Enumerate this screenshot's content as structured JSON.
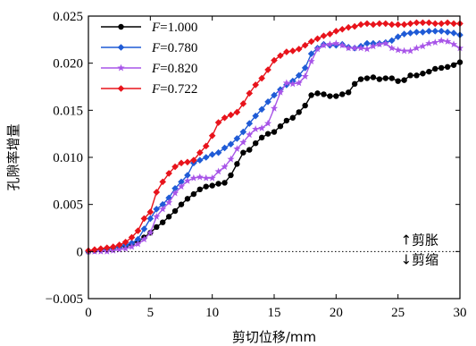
{
  "chart_data": {
    "type": "line",
    "xlabel": "剪切位移/mm",
    "ylabel": "孔隙率增量",
    "xlim": [
      0,
      30
    ],
    "ylim": [
      -0.005,
      0.025
    ],
    "xticks": [
      0,
      5,
      10,
      15,
      20,
      25,
      30
    ],
    "xtick_labels": [
      "0",
      "5",
      "10",
      "15",
      "20",
      "25",
      "30"
    ],
    "yticks": [
      -0.005,
      0,
      0.005,
      0.01,
      0.015,
      0.02,
      0.025
    ],
    "ytick_labels": [
      "−0.005",
      "0",
      "0.005",
      "0.010",
      "0.015",
      "0.020",
      "0.025"
    ],
    "grid": false,
    "legend_position": "top-left",
    "reference_line": {
      "y": 0,
      "style": "dotted"
    },
    "annotations": [
      {
        "text": "↑剪胀",
        "x": 25.2,
        "y": 0.00075
      },
      {
        "text": "↓剪缩",
        "x": 25.2,
        "y": -0.00135
      }
    ],
    "series": [
      {
        "legend_italic": "F",
        "legend_rest": "=1.000",
        "color": "#000000",
        "marker": "circle",
        "x": [
          0,
          0.5,
          1,
          1.5,
          2,
          2.5,
          3,
          3.5,
          4,
          4.5,
          5,
          5.5,
          6,
          6.5,
          7,
          7.5,
          8,
          8.5,
          9,
          9.5,
          10,
          10.5,
          11,
          11.5,
          12,
          12.5,
          13,
          13.5,
          14,
          14.5,
          15,
          15.5,
          16,
          16.5,
          17,
          17.5,
          18,
          18.5,
          19,
          19.5,
          20,
          20.5,
          21,
          21.5,
          22,
          22.5,
          23,
          23.5,
          24,
          24.5,
          25,
          25.5,
          26,
          26.5,
          27,
          27.5,
          28,
          28.5,
          29,
          29.5,
          30
        ],
        "y": [
          0,
          0.0001,
          0.0002,
          0.0003,
          0.0004,
          0.0005,
          0.0006,
          0.0008,
          0.0011,
          0.0015,
          0.002,
          0.0026,
          0.0031,
          0.0037,
          0.0043,
          0.005,
          0.0056,
          0.0061,
          0.0066,
          0.0069,
          0.007,
          0.0072,
          0.0073,
          0.0081,
          0.0093,
          0.0105,
          0.0108,
          0.0115,
          0.0121,
          0.0125,
          0.0127,
          0.0133,
          0.0139,
          0.0142,
          0.0148,
          0.0155,
          0.0166,
          0.0168,
          0.0167,
          0.0165,
          0.0165,
          0.0167,
          0.0169,
          0.0178,
          0.0183,
          0.0184,
          0.0185,
          0.0183,
          0.0184,
          0.0184,
          0.0181,
          0.0182,
          0.0187,
          0.0187,
          0.0189,
          0.0191,
          0.0194,
          0.0195,
          0.0196,
          0.0198,
          0.0201
        ]
      },
      {
        "legend_italic": "F",
        "legend_rest": "=0.780",
        "color": "#1f5bd6",
        "marker": "diamond",
        "x": [
          0,
          0.5,
          1,
          1.5,
          2,
          2.5,
          3,
          3.5,
          4,
          4.5,
          5,
          5.5,
          6,
          6.5,
          7,
          7.5,
          8,
          8.5,
          9,
          9.5,
          10,
          10.5,
          11,
          11.5,
          12,
          12.5,
          13,
          13.5,
          14,
          14.5,
          15,
          15.5,
          16,
          16.5,
          17,
          17.5,
          18,
          18.5,
          19,
          19.5,
          20,
          20.5,
          21,
          21.5,
          22,
          22.5,
          23,
          23.5,
          24,
          24.5,
          25,
          25.5,
          26,
          26.5,
          27,
          27.5,
          28,
          28.5,
          29,
          29.5,
          30
        ],
        "y": [
          0,
          0.0001,
          0.0002,
          0.0003,
          0.0004,
          0.0005,
          0.0007,
          0.0009,
          0.0013,
          0.0024,
          0.0035,
          0.0045,
          0.005,
          0.0057,
          0.0067,
          0.0074,
          0.0081,
          0.0094,
          0.0097,
          0.01,
          0.0103,
          0.0105,
          0.011,
          0.0114,
          0.012,
          0.0127,
          0.0136,
          0.0144,
          0.0151,
          0.0159,
          0.0166,
          0.0172,
          0.0177,
          0.0181,
          0.0187,
          0.0195,
          0.021,
          0.0216,
          0.022,
          0.0219,
          0.0219,
          0.022,
          0.0217,
          0.0216,
          0.0218,
          0.0221,
          0.0221,
          0.0221,
          0.0222,
          0.0224,
          0.0228,
          0.0231,
          0.0232,
          0.0233,
          0.0233,
          0.0234,
          0.0234,
          0.0234,
          0.0233,
          0.0232,
          0.023
        ]
      },
      {
        "legend_italic": "F",
        "legend_rest": "=0.820",
        "color": "#a855e8",
        "marker": "star",
        "x": [
          0,
          0.5,
          1,
          1.5,
          2,
          2.5,
          3,
          3.5,
          4,
          4.5,
          5,
          5.5,
          6,
          6.5,
          7,
          7.5,
          8,
          8.5,
          9,
          9.5,
          10,
          10.5,
          11,
          11.5,
          12,
          12.5,
          13,
          13.5,
          14,
          14.5,
          15,
          15.5,
          16,
          16.5,
          17,
          17.5,
          18,
          18.5,
          19,
          19.5,
          20,
          20.5,
          21,
          21.5,
          22,
          22.5,
          23,
          23.5,
          24,
          24.5,
          25,
          25.5,
          26,
          26.5,
          27,
          27.5,
          28,
          28.5,
          29,
          29.5,
          30
        ],
        "y": [
          0,
          0,
          0,
          0,
          0.0001,
          0.0002,
          0.0003,
          0.0005,
          0.0008,
          0.0013,
          0.002,
          0.0037,
          0.0045,
          0.0052,
          0.0062,
          0.0069,
          0.0075,
          0.0078,
          0.0079,
          0.0078,
          0.0078,
          0.0085,
          0.009,
          0.0098,
          0.0109,
          0.0116,
          0.0124,
          0.013,
          0.0131,
          0.0136,
          0.0152,
          0.0169,
          0.0179,
          0.0178,
          0.0179,
          0.0186,
          0.0202,
          0.0215,
          0.0219,
          0.022,
          0.0221,
          0.0219,
          0.0216,
          0.0216,
          0.0216,
          0.0215,
          0.0218,
          0.022,
          0.0221,
          0.0216,
          0.0214,
          0.0213,
          0.0213,
          0.0216,
          0.0218,
          0.0221,
          0.0222,
          0.0224,
          0.0223,
          0.022,
          0.0216
        ]
      },
      {
        "legend_italic": "F",
        "legend_rest": "=0.722",
        "color": "#e8131b",
        "marker": "diamond",
        "x": [
          0,
          0.5,
          1,
          1.5,
          2,
          2.5,
          3,
          3.5,
          4,
          4.5,
          5,
          5.5,
          6,
          6.5,
          7,
          7.5,
          8,
          8.5,
          9,
          9.5,
          10,
          10.5,
          11,
          11.5,
          12,
          12.5,
          13,
          13.5,
          14,
          14.5,
          15,
          15.5,
          16,
          16.5,
          17,
          17.5,
          18,
          18.5,
          19,
          19.5,
          20,
          20.5,
          21,
          21.5,
          22,
          22.5,
          23,
          23.5,
          24,
          24.5,
          25,
          25.5,
          26,
          26.5,
          27,
          27.5,
          28,
          28.5,
          29,
          29.5,
          30
        ],
        "y": [
          0.0001,
          0.0002,
          0.0003,
          0.0004,
          0.0005,
          0.0007,
          0.001,
          0.0015,
          0.0022,
          0.0035,
          0.0042,
          0.0063,
          0.0074,
          0.0083,
          0.009,
          0.0094,
          0.0095,
          0.0097,
          0.0105,
          0.0112,
          0.0123,
          0.0137,
          0.0142,
          0.0145,
          0.0148,
          0.0157,
          0.0168,
          0.0177,
          0.0184,
          0.0193,
          0.0203,
          0.0208,
          0.0212,
          0.0213,
          0.0215,
          0.0219,
          0.0223,
          0.0226,
          0.0229,
          0.0231,
          0.0234,
          0.0236,
          0.0238,
          0.0239,
          0.0241,
          0.0242,
          0.0241,
          0.0242,
          0.0242,
          0.0241,
          0.0241,
          0.0241,
          0.0242,
          0.0243,
          0.0243,
          0.0243,
          0.0242,
          0.0242,
          0.0243,
          0.0242,
          0.0242
        ]
      }
    ]
  }
}
